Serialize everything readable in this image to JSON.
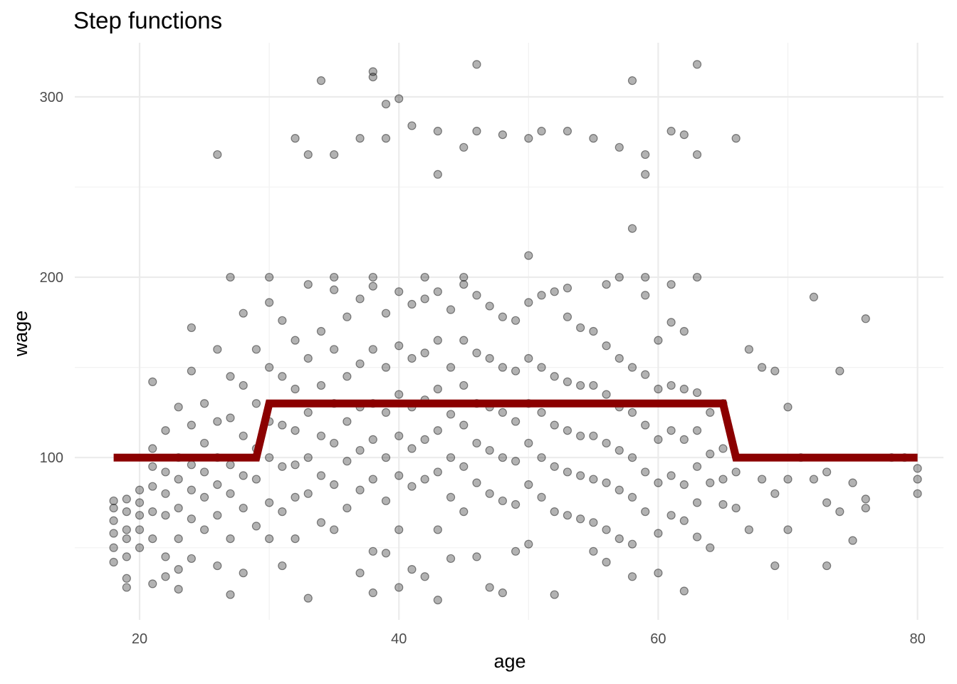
{
  "chart_data": {
    "type": "scatter",
    "title": "Step functions",
    "xlabel": "age",
    "ylabel": "wage",
    "xlim": [
      15,
      82
    ],
    "ylim": [
      10,
      330
    ],
    "x_ticks": [
      20,
      40,
      60,
      80
    ],
    "y_ticks": [
      100,
      200,
      300
    ],
    "grid": true,
    "legend": "none",
    "colors": {
      "points": "#000000",
      "step": "#8b0000"
    },
    "step_fit": {
      "name": "",
      "x": [
        18,
        29,
        30,
        65,
        66,
        80
      ],
      "y": [
        100,
        100,
        130,
        130,
        100,
        100
      ]
    },
    "sample_points": [
      [
        26,
        268
      ],
      [
        34,
        309
      ],
      [
        38,
        314
      ],
      [
        38,
        311
      ],
      [
        39,
        296
      ],
      [
        40,
        299
      ],
      [
        46,
        318
      ],
      [
        58,
        309
      ],
      [
        63,
        318
      ],
      [
        32,
        277
      ],
      [
        33,
        268
      ],
      [
        35,
        268
      ],
      [
        37,
        277
      ],
      [
        39,
        277
      ],
      [
        41,
        284
      ],
      [
        43,
        281
      ],
      [
        45,
        272
      ],
      [
        46,
        281
      ],
      [
        48,
        279
      ],
      [
        50,
        277
      ],
      [
        51,
        281
      ],
      [
        53,
        281
      ],
      [
        55,
        277
      ],
      [
        57,
        272
      ],
      [
        59,
        268
      ],
      [
        61,
        281
      ],
      [
        62,
        279
      ],
      [
        63,
        268
      ],
      [
        66,
        277
      ],
      [
        43,
        257
      ],
      [
        59,
        257
      ],
      [
        58,
        227
      ],
      [
        50,
        212
      ],
      [
        27,
        200
      ],
      [
        30,
        200
      ],
      [
        35,
        200
      ],
      [
        38,
        200
      ],
      [
        42,
        200
      ],
      [
        45,
        200
      ],
      [
        57,
        200
      ],
      [
        59,
        200
      ],
      [
        63,
        200
      ],
      [
        72,
        189
      ],
      [
        76,
        177
      ],
      [
        24,
        172
      ],
      [
        61,
        196
      ],
      [
        53,
        194
      ],
      [
        56,
        196
      ],
      [
        67,
        160
      ],
      [
        68,
        150
      ],
      [
        69,
        148
      ],
      [
        70,
        128
      ],
      [
        71,
        100
      ],
      [
        72,
        88
      ],
      [
        73,
        92
      ],
      [
        74,
        148
      ],
      [
        75,
        86
      ],
      [
        76,
        77
      ],
      [
        79,
        100
      ],
      [
        80,
        80
      ],
      [
        80,
        88
      ],
      [
        80,
        94
      ],
      [
        78,
        100
      ],
      [
        68,
        88
      ],
      [
        69,
        80
      ],
      [
        70,
        60
      ],
      [
        70,
        88
      ],
      [
        73,
        75
      ],
      [
        74,
        70
      ],
      [
        75,
        54
      ],
      [
        69,
        40
      ],
      [
        73,
        40
      ],
      [
        76,
        72
      ],
      [
        66,
        92
      ],
      [
        67,
        60
      ],
      [
        66,
        72
      ],
      [
        18,
        76
      ],
      [
        18,
        72
      ],
      [
        18,
        65
      ],
      [
        18,
        58
      ],
      [
        18,
        50
      ],
      [
        18,
        42
      ],
      [
        19,
        77
      ],
      [
        19,
        70
      ],
      [
        19,
        60
      ],
      [
        19,
        55
      ],
      [
        19,
        45
      ],
      [
        19,
        33
      ],
      [
        19,
        28
      ],
      [
        20,
        82
      ],
      [
        20,
        75
      ],
      [
        20,
        68
      ],
      [
        20,
        60
      ],
      [
        20,
        50
      ],
      [
        21,
        142
      ],
      [
        21,
        105
      ],
      [
        21,
        95
      ],
      [
        21,
        84
      ],
      [
        21,
        70
      ],
      [
        21,
        55
      ],
      [
        21,
        30
      ],
      [
        22,
        115
      ],
      [
        22,
        92
      ],
      [
        22,
        80
      ],
      [
        22,
        68
      ],
      [
        22,
        45
      ],
      [
        22,
        34
      ],
      [
        23,
        128
      ],
      [
        23,
        100
      ],
      [
        23,
        88
      ],
      [
        23,
        72
      ],
      [
        23,
        55
      ],
      [
        23,
        38
      ],
      [
        23,
        27
      ],
      [
        24,
        148
      ],
      [
        24,
        118
      ],
      [
        24,
        96
      ],
      [
        24,
        82
      ],
      [
        24,
        66
      ],
      [
        24,
        44
      ],
      [
        25,
        130
      ],
      [
        25,
        108
      ],
      [
        25,
        92
      ],
      [
        25,
        78
      ],
      [
        25,
        60
      ],
      [
        26,
        160
      ],
      [
        26,
        120
      ],
      [
        26,
        100
      ],
      [
        26,
        85
      ],
      [
        26,
        68
      ],
      [
        26,
        40
      ],
      [
        27,
        145
      ],
      [
        27,
        122
      ],
      [
        27,
        96
      ],
      [
        27,
        80
      ],
      [
        27,
        55
      ],
      [
        27,
        24
      ],
      [
        28,
        180
      ],
      [
        28,
        140
      ],
      [
        28,
        112
      ],
      [
        28,
        90
      ],
      [
        28,
        72
      ],
      [
        28,
        36
      ],
      [
        29,
        160
      ],
      [
        29,
        130
      ],
      [
        29,
        105
      ],
      [
        29,
        88
      ],
      [
        29,
        62
      ],
      [
        30,
        186
      ],
      [
        30,
        150
      ],
      [
        30,
        120
      ],
      [
        30,
        100
      ],
      [
        30,
        75
      ],
      [
        30,
        55
      ],
      [
        31,
        176
      ],
      [
        31,
        145
      ],
      [
        31,
        118
      ],
      [
        31,
        95
      ],
      [
        31,
        70
      ],
      [
        31,
        40
      ],
      [
        32,
        165
      ],
      [
        32,
        138
      ],
      [
        32,
        115
      ],
      [
        32,
        96
      ],
      [
        32,
        78
      ],
      [
        32,
        55
      ],
      [
        33,
        196
      ],
      [
        33,
        155
      ],
      [
        33,
        125
      ],
      [
        33,
        100
      ],
      [
        33,
        80
      ],
      [
        33,
        22
      ],
      [
        34,
        170
      ],
      [
        34,
        140
      ],
      [
        34,
        112
      ],
      [
        34,
        90
      ],
      [
        34,
        64
      ],
      [
        35,
        193
      ],
      [
        35,
        160
      ],
      [
        35,
        130
      ],
      [
        35,
        108
      ],
      [
        35,
        85
      ],
      [
        35,
        60
      ],
      [
        36,
        178
      ],
      [
        36,
        145
      ],
      [
        36,
        120
      ],
      [
        36,
        98
      ],
      [
        36,
        72
      ],
      [
        37,
        188
      ],
      [
        37,
        152
      ],
      [
        37,
        128
      ],
      [
        37,
        104
      ],
      [
        37,
        82
      ],
      [
        37,
        36
      ],
      [
        38,
        195
      ],
      [
        38,
        160
      ],
      [
        38,
        130
      ],
      [
        38,
        110
      ],
      [
        38,
        88
      ],
      [
        38,
        48
      ],
      [
        38,
        25
      ],
      [
        39,
        180
      ],
      [
        39,
        150
      ],
      [
        39,
        125
      ],
      [
        39,
        100
      ],
      [
        39,
        76
      ],
      [
        39,
        47
      ],
      [
        40,
        192
      ],
      [
        40,
        162
      ],
      [
        40,
        135
      ],
      [
        40,
        112
      ],
      [
        40,
        90
      ],
      [
        40,
        60
      ],
      [
        40,
        28
      ],
      [
        41,
        185
      ],
      [
        41,
        155
      ],
      [
        41,
        128
      ],
      [
        41,
        105
      ],
      [
        41,
        84
      ],
      [
        41,
        38
      ],
      [
        42,
        188
      ],
      [
        42,
        158
      ],
      [
        42,
        132
      ],
      [
        42,
        110
      ],
      [
        42,
        88
      ],
      [
        42,
        34
      ],
      [
        43,
        192
      ],
      [
        43,
        165
      ],
      [
        43,
        138
      ],
      [
        43,
        115
      ],
      [
        43,
        92
      ],
      [
        43,
        60
      ],
      [
        43,
        21
      ],
      [
        44,
        182
      ],
      [
        44,
        150
      ],
      [
        44,
        124
      ],
      [
        44,
        100
      ],
      [
        44,
        78
      ],
      [
        44,
        44
      ],
      [
        45,
        196
      ],
      [
        45,
        165
      ],
      [
        45,
        140
      ],
      [
        45,
        118
      ],
      [
        45,
        95
      ],
      [
        45,
        70
      ],
      [
        46,
        190
      ],
      [
        46,
        158
      ],
      [
        46,
        130
      ],
      [
        46,
        108
      ],
      [
        46,
        86
      ],
      [
        46,
        45
      ],
      [
        47,
        184
      ],
      [
        47,
        155
      ],
      [
        47,
        128
      ],
      [
        47,
        104
      ],
      [
        47,
        80
      ],
      [
        47,
        28
      ],
      [
        48,
        178
      ],
      [
        48,
        150
      ],
      [
        48,
        125
      ],
      [
        48,
        100
      ],
      [
        48,
        76
      ],
      [
        48,
        25
      ],
      [
        49,
        176
      ],
      [
        49,
        148
      ],
      [
        49,
        120
      ],
      [
        49,
        98
      ],
      [
        49,
        74
      ],
      [
        49,
        48
      ],
      [
        50,
        186
      ],
      [
        50,
        155
      ],
      [
        50,
        130
      ],
      [
        50,
        108
      ],
      [
        50,
        85
      ],
      [
        50,
        52
      ],
      [
        51,
        190
      ],
      [
        51,
        150
      ],
      [
        51,
        125
      ],
      [
        51,
        100
      ],
      [
        51,
        78
      ],
      [
        52,
        192
      ],
      [
        52,
        145
      ],
      [
        52,
        118
      ],
      [
        52,
        95
      ],
      [
        52,
        70
      ],
      [
        52,
        24
      ],
      [
        53,
        178
      ],
      [
        53,
        142
      ],
      [
        53,
        115
      ],
      [
        53,
        92
      ],
      [
        53,
        68
      ],
      [
        54,
        172
      ],
      [
        54,
        140
      ],
      [
        54,
        112
      ],
      [
        54,
        90
      ],
      [
        54,
        66
      ],
      [
        55,
        170
      ],
      [
        55,
        140
      ],
      [
        55,
        112
      ],
      [
        55,
        88
      ],
      [
        55,
        64
      ],
      [
        55,
        48
      ],
      [
        56,
        162
      ],
      [
        56,
        135
      ],
      [
        56,
        108
      ],
      [
        56,
        86
      ],
      [
        56,
        60
      ],
      [
        56,
        42
      ],
      [
        57,
        155
      ],
      [
        57,
        128
      ],
      [
        57,
        104
      ],
      [
        57,
        82
      ],
      [
        57,
        55
      ],
      [
        58,
        150
      ],
      [
        58,
        125
      ],
      [
        58,
        100
      ],
      [
        58,
        78
      ],
      [
        58,
        52
      ],
      [
        58,
        34
      ],
      [
        59,
        190
      ],
      [
        59,
        146
      ],
      [
        59,
        118
      ],
      [
        59,
        92
      ],
      [
        59,
        70
      ],
      [
        60,
        165
      ],
      [
        60,
        138
      ],
      [
        60,
        110
      ],
      [
        60,
        86
      ],
      [
        60,
        58
      ],
      [
        60,
        36
      ],
      [
        61,
        175
      ],
      [
        61,
        140
      ],
      [
        61,
        115
      ],
      [
        61,
        90
      ],
      [
        61,
        68
      ],
      [
        62,
        170
      ],
      [
        62,
        138
      ],
      [
        62,
        110
      ],
      [
        62,
        85
      ],
      [
        62,
        65
      ],
      [
        62,
        26
      ],
      [
        63,
        136
      ],
      [
        63,
        115
      ],
      [
        63,
        95
      ],
      [
        63,
        75
      ],
      [
        63,
        56
      ],
      [
        64,
        125
      ],
      [
        64,
        102
      ],
      [
        64,
        86
      ],
      [
        64,
        50
      ],
      [
        65,
        130
      ],
      [
        65,
        105
      ],
      [
        65,
        88
      ],
      [
        65,
        74
      ]
    ]
  }
}
